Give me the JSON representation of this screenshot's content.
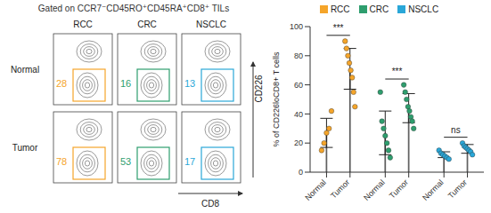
{
  "chart_data": [
    {
      "type": "contour",
      "title": "Gated on CCR7⁻CD45RO⁺CD45RA⁺CD8⁺ TILs",
      "columns": [
        "RCC",
        "CRC",
        "NSCLC"
      ],
      "rows": [
        "Normal",
        "Tumor"
      ],
      "gate_values": [
        [
          28,
          16,
          13
        ],
        [
          78,
          53,
          17
        ]
      ],
      "colors": [
        "#F5A52A",
        "#2E9E6E",
        "#2AA7D8"
      ],
      "x_label": "CD8",
      "y_label": "CD226"
    },
    {
      "type": "bar",
      "y_label": "% of CD226loCD8+ T cells",
      "categories": [
        "Normal",
        "Tumor"
      ],
      "series": [
        {
          "name": "RCC",
          "color": "#F5A52A",
          "values": [
            27,
            71
          ],
          "errors": [
            10,
            14
          ],
          "points": [
            [
              15,
              20,
              27,
              30,
              42
            ],
            [
              90,
              85,
              80,
              75,
              70,
              65,
              55,
              45
            ]
          ]
        },
        {
          "name": "CRC",
          "color": "#2E9E6E",
          "values": [
            27,
            44
          ],
          "errors": [
            15,
            10
          ],
          "points": [
            [
              55,
              35,
              30,
              25,
              20,
              15,
              10
            ],
            [
              60,
              55,
              50,
              45,
              42,
              38,
              35,
              30
            ]
          ]
        },
        {
          "name": "NSCLC",
          "color": "#2AA7D8",
          "values": [
            12,
            16
          ],
          "errors": [
            2,
            3
          ],
          "points": [
            [
              15,
              13,
              12,
              11,
              10,
              9
            ],
            [
              20,
              18,
              17,
              16,
              15,
              14,
              12
            ]
          ]
        }
      ],
      "ylim": [
        0,
        100
      ],
      "yticks": [
        0,
        20,
        40,
        60,
        80,
        100
      ],
      "legend": "top",
      "annotations": [
        {
          "series": "RCC",
          "label": "***"
        },
        {
          "series": "CRC",
          "label": "***"
        },
        {
          "series": "NSCLC",
          "label": "ns"
        }
      ]
    }
  ]
}
